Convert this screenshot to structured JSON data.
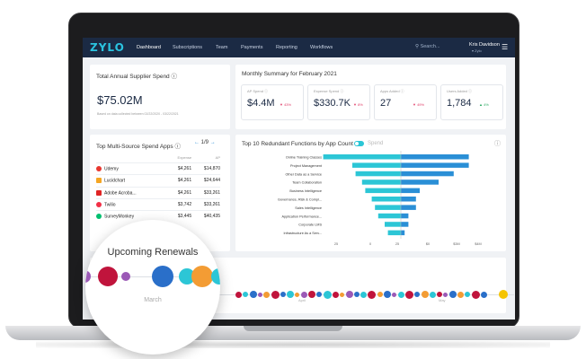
{
  "nav": {
    "logo": "ZYLO",
    "items": [
      "Dashboard",
      "Subscriptions",
      "Team",
      "Payments",
      "Reporting",
      "Workflows"
    ],
    "search_placeholder": "Search...",
    "user_name": "Kris Davidson",
    "user_sub": "▾ Zylo"
  },
  "annual": {
    "title": "Total Annual Supplier Spend ⓘ",
    "value": "$75.02M",
    "note": "Based on data collected between 02/22/2020 - 03/22/2021"
  },
  "monthly": {
    "title": "Monthly Summary for February 2021",
    "metrics": [
      {
        "label": "AP Spend ⓘ",
        "value": "$4.4M",
        "delta": "▼ 43%",
        "direction": "down"
      },
      {
        "label": "Expense Spend ⓘ",
        "value": "$330.7K",
        "delta": "▼ 8%",
        "direction": "down"
      },
      {
        "label": "Apps Added ⓘ",
        "value": "27",
        "delta": "▼ 49%",
        "direction": "down"
      },
      {
        "label": "Users Added ⓘ",
        "value": "1,784",
        "delta": "▲ 4%",
        "direction": "up"
      }
    ]
  },
  "multisource": {
    "title": "Top Multi-Source Spend Apps ⓘ",
    "pager": "1/9",
    "columns": [
      "",
      "Expense",
      "AP"
    ],
    "rows": [
      {
        "name": "Udemy",
        "expense": "$4,261",
        "ap": "$14,870"
      },
      {
        "name": "Lucidchart",
        "expense": "$4,261",
        "ap": "$24,644"
      },
      {
        "name": "Adobe Acroba...",
        "expense": "$4,261",
        "ap": "$33,261"
      },
      {
        "name": "Twilio",
        "expense": "$3,742",
        "ap": "$33,261"
      },
      {
        "name": "SurveyMonkey",
        "expense": "$3,445",
        "ap": "$40,435"
      }
    ]
  },
  "redundant": {
    "title": "Top 10 Redundant Functions by App Count",
    "toggle_label": "Spend"
  },
  "chart_data": {
    "type": "bar",
    "title": "Top 10 Redundant Functions by App Count",
    "categories": [
      "Online Training Classes",
      "Project Management",
      "Other Data as a Service",
      "Team Collaboration",
      "Business Intelligence",
      "Governance, Risk & Compl...",
      "Sales Intelligence",
      "Application Performance...",
      "Corporate LMS",
      "Infrastructure As a Serv..."
    ],
    "series": [
      {
        "values": [
          -24,
          -15,
          -14,
          -12,
          -11,
          -9,
          -8,
          -7,
          -5,
          -4
        ]
      },
      {
        "values": [
          18,
          18,
          14,
          10,
          5,
          4,
          4,
          2,
          2,
          1
        ]
      }
    ],
    "tick_labels": [
      "25",
      "0",
      "25",
      "$0",
      "$3M",
      "$4M"
    ],
    "colors": [
      "#2cc6d6",
      "#2a8fd6"
    ]
  },
  "renewals": {
    "title": "Upcoming Renewals",
    "months": [
      "April",
      "May"
    ],
    "dot_colors": [
      "#c0143c",
      "#9b59b6",
      "#2a6fc9",
      "#2cc6d6",
      "#f39c34"
    ],
    "magnifier_title": "Upcoming Renewals",
    "magnifier_month": "March"
  }
}
